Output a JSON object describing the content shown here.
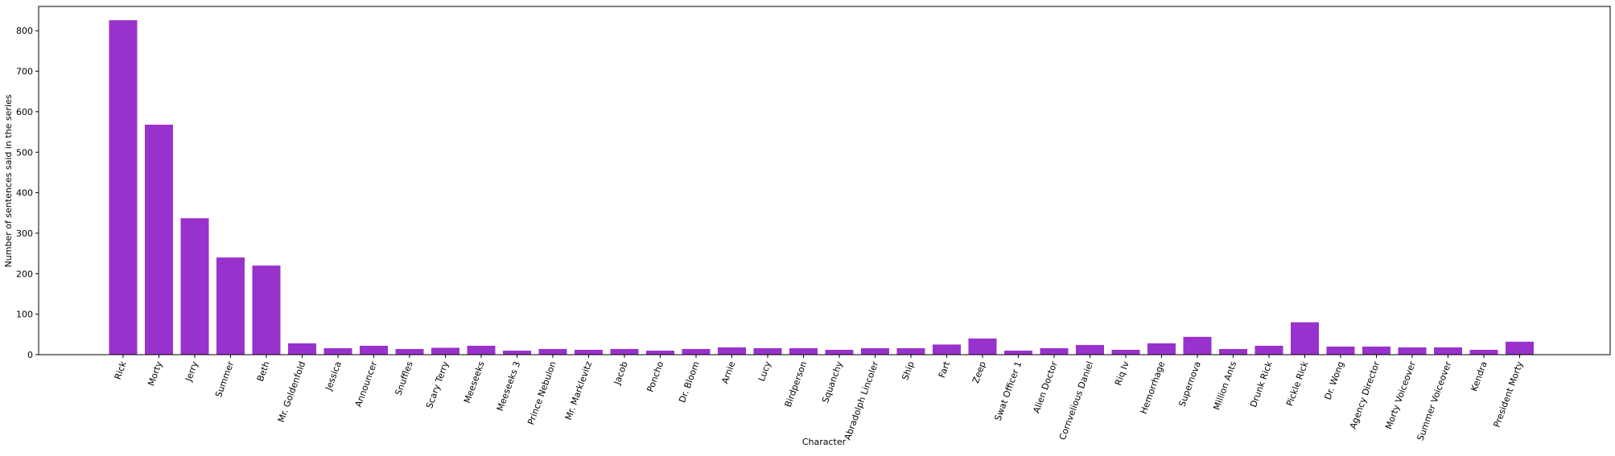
{
  "chart_data": {
    "type": "bar",
    "title": "",
    "xlabel": "Character",
    "ylabel": "Number of sentences said in the series",
    "ylim": [
      0,
      860
    ],
    "yticks": [
      0,
      100,
      200,
      300,
      400,
      500,
      600,
      700,
      800
    ],
    "grid": false,
    "bar_color": "#9932cc",
    "categories": [
      "Rick",
      "Morty",
      "Jerry",
      "Summer",
      "Beth",
      "Mr. Goldenfold",
      "Jessica",
      "Announcer",
      "Snuffles",
      "Scary Terry",
      "Meeseeks",
      "Meeseeks 3",
      "Prince Nebulon",
      "Mr. Marklevitz",
      "Jacob",
      "Poncho",
      "Dr. Bloom",
      "Arnie",
      "Lucy",
      "Birdperson",
      "Squanchy",
      "Abradolph Lincoler",
      "Ship",
      "Fart",
      "Zeep",
      "Swat Officer 1",
      "Alien Doctor",
      "Cornvelious Daniel",
      "Riq Iv",
      "Hemorrhage",
      "Supernova",
      "Million Ants",
      "Drunk Rick",
      "Pickle Rick",
      "Dr. Wong",
      "Agency Director",
      "Morty Voiceover",
      "Summer Voiceover",
      "Kendra",
      "President Morty"
    ],
    "values": [
      826,
      568,
      337,
      240,
      220,
      28,
      16,
      22,
      14,
      17,
      22,
      10,
      14,
      12,
      14,
      10,
      14,
      18,
      16,
      16,
      12,
      16,
      16,
      25,
      40,
      10,
      16,
      24,
      12,
      28,
      44,
      14,
      22,
      80,
      20,
      20,
      18,
      18,
      12,
      32
    ]
  }
}
